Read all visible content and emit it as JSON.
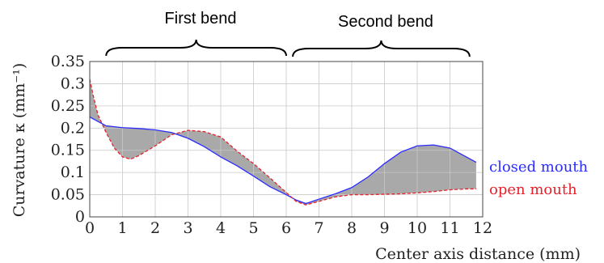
{
  "chart_data": {
    "type": "line",
    "title": "",
    "xlabel": "Center axis distance (mm)",
    "ylabel": "Curvature κ (mm⁻¹)",
    "xlim": [
      0,
      12
    ],
    "ylim": [
      0,
      0.35
    ],
    "xticks": [
      "0",
      "1",
      "2",
      "3",
      "4",
      "5",
      "6",
      "7",
      "8",
      "9",
      "10",
      "11",
      "12"
    ],
    "yticks": [
      "0",
      "0.05",
      "0.1",
      "0.15",
      "0.2",
      "0.25",
      "0.3",
      "0.35"
    ],
    "grid": true,
    "legend_placement": "right",
    "fill_between_series": true,
    "fill_color": "#a9a9a9",
    "annotations": [
      {
        "text": "First bend",
        "x_start": 0.5,
        "x_end": 6.0
      },
      {
        "text": "Second bend",
        "x_start": 6.2,
        "x_end": 11.6
      }
    ],
    "series": [
      {
        "name": "closed mouth",
        "color": "#2b2bff",
        "dash": "solid",
        "x": [
          0,
          0.25,
          0.5,
          1,
          1.5,
          2,
          2.5,
          3,
          3.5,
          4,
          4.5,
          5,
          5.5,
          6,
          6.3,
          6.6,
          7,
          7.5,
          8,
          8.5,
          9,
          9.5,
          10,
          10.5,
          11,
          11.5,
          11.8
        ],
        "values": [
          0.225,
          0.215,
          0.205,
          0.201,
          0.199,
          0.196,
          0.19,
          0.177,
          0.158,
          0.135,
          0.115,
          0.092,
          0.068,
          0.05,
          0.038,
          0.03,
          0.04,
          0.052,
          0.066,
          0.09,
          0.12,
          0.146,
          0.16,
          0.162,
          0.155,
          0.135,
          0.123
        ]
      },
      {
        "name": "open mouth",
        "color": "#e8202a",
        "dash": "dashed",
        "x": [
          0,
          0.1,
          0.25,
          0.5,
          0.75,
          1,
          1.25,
          1.5,
          2,
          2.5,
          3,
          3.5,
          4,
          4.5,
          5,
          5.5,
          6,
          6.3,
          6.6,
          7,
          7.5,
          8,
          8.5,
          9,
          9.5,
          10,
          10.5,
          11,
          11.5,
          11.8
        ],
        "values": [
          0.31,
          0.275,
          0.23,
          0.19,
          0.155,
          0.135,
          0.13,
          0.138,
          0.16,
          0.185,
          0.195,
          0.192,
          0.18,
          0.148,
          0.12,
          0.088,
          0.055,
          0.035,
          0.027,
          0.035,
          0.045,
          0.05,
          0.05,
          0.051,
          0.052,
          0.054,
          0.057,
          0.061,
          0.063,
          0.063
        ]
      }
    ]
  }
}
